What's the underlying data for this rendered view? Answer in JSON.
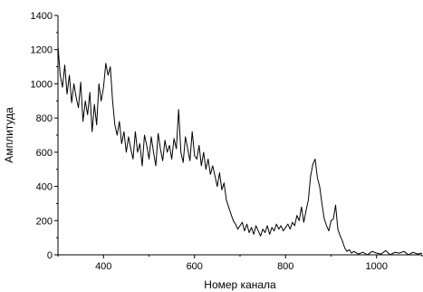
{
  "chart_data": {
    "type": "line",
    "title": "",
    "xlabel": "Номер канала",
    "ylabel": "Амплитуда",
    "xlim": [
      300,
      1100
    ],
    "ylim": [
      0,
      1400
    ],
    "x_ticks": [
      400,
      600,
      800,
      1000
    ],
    "y_ticks": [
      0,
      200,
      400,
      600,
      800,
      1000,
      1200,
      1400
    ],
    "grid": false,
    "legend": "none",
    "line_color": "#000000",
    "series": [
      {
        "x": [
          300,
          305,
          310,
          315,
          320,
          325,
          330,
          335,
          340,
          345,
          350,
          355,
          360,
          365,
          370,
          375,
          380,
          385,
          390,
          395,
          400,
          405,
          410,
          415,
          420,
          425,
          430,
          435,
          440,
          445,
          450,
          455,
          460,
          465,
          470,
          475,
          480,
          485,
          490,
          495,
          500,
          505,
          510,
          515,
          520,
          525,
          530,
          535,
          540,
          545,
          550,
          555,
          560,
          565,
          570,
          575,
          580,
          585,
          590,
          595,
          600,
          605,
          610,
          615,
          620,
          625,
          630,
          635,
          640,
          645,
          650,
          655,
          660,
          665,
          670,
          675,
          680,
          685,
          690,
          695,
          700,
          705,
          710,
          715,
          720,
          725,
          730,
          735,
          740,
          745,
          750,
          755,
          760,
          765,
          770,
          775,
          780,
          785,
          790,
          795,
          800,
          805,
          810,
          815,
          820,
          825,
          830,
          835,
          840,
          845,
          850,
          855,
          860,
          865,
          870,
          875,
          880,
          885,
          890,
          895,
          900,
          905,
          910,
          915,
          920,
          925,
          930,
          935,
          940,
          945,
          950,
          960,
          970,
          980,
          990,
          1000,
          1010,
          1020,
          1030,
          1040,
          1050,
          1060,
          1070,
          1080,
          1090,
          1100
        ],
        "values": [
          1220,
          1050,
          980,
          1110,
          940,
          1050,
          890,
          1000,
          920,
          860,
          1010,
          780,
          900,
          820,
          950,
          720,
          880,
          760,
          1000,
          900,
          980,
          1120,
          1050,
          1100,
          900,
          760,
          700,
          780,
          650,
          720,
          600,
          690,
          620,
          560,
          720,
          600,
          650,
          520,
          700,
          640,
          560,
          690,
          600,
          520,
          710,
          620,
          550,
          670,
          600,
          640,
          560,
          680,
          620,
          850,
          600,
          540,
          690,
          620,
          550,
          720,
          580,
          560,
          640,
          520,
          600,
          500,
          560,
          470,
          520,
          460,
          400,
          480,
          380,
          420,
          320,
          280,
          240,
          200,
          180,
          150,
          170,
          190,
          140,
          180,
          130,
          160,
          120,
          170,
          140,
          110,
          150,
          130,
          170,
          120,
          160,
          140,
          180,
          150,
          170,
          140,
          160,
          180,
          150,
          190,
          170,
          230,
          200,
          280,
          190,
          260,
          320,
          460,
          530,
          560,
          450,
          400,
          300,
          210,
          170,
          140,
          200,
          210,
          290,
          150,
          110,
          80,
          40,
          20,
          30,
          10,
          20,
          5,
          15,
          0,
          20,
          10,
          5,
          25,
          0,
          15,
          10,
          20,
          0,
          15,
          5,
          10
        ]
      }
    ]
  }
}
